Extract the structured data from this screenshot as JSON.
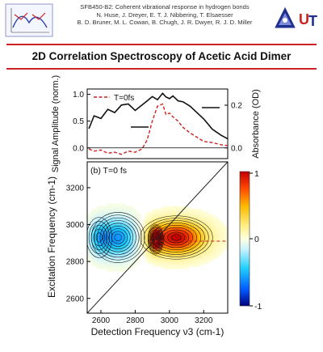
{
  "header": {
    "line1": "SFB450-B2: Coherent vibrational response in hydrogen bonds",
    "line2": "N. Huse, J. Dreyer, E. T. J. Nibbering, T. Elsaesser",
    "line3": "B. D. Bruner, M. L. Cowan, B. Chugh, J. R. Dwyer, R. J. D. Miller",
    "logo_right_text": "U",
    "logo_right_text2": "T"
  },
  "title": "2D Correlation Spectroscopy of Acetic Acid Dimer",
  "colors": {
    "rule": "#cc2222",
    "signal_line": "#cc2222",
    "absorbance_line": "#111111",
    "colorbar_max": "#c00000",
    "colorbar_zero": "#ffffe0",
    "colorbar_min": "#000080"
  },
  "chart_data": [
    {
      "type": "line",
      "panel": "top",
      "ylabel_left": "Signal Amplitude (norm.)",
      "ylabel_right": "Absorbance (OD)",
      "legend": "T=0fs",
      "left_ticks": [
        "0.0",
        "0.5",
        "1.0"
      ],
      "right_ticks": [
        "0.0",
        "0.2"
      ],
      "xlim": [
        2520,
        3340
      ],
      "ylim_left": [
        -0.2,
        1.1
      ],
      "x": [
        2530,
        2560,
        2600,
        2640,
        2680,
        2720,
        2760,
        2800,
        2840,
        2870,
        2900,
        2930,
        2960,
        2980,
        3000,
        3020,
        3050,
        3080,
        3120,
        3160,
        3200,
        3250,
        3300,
        3340
      ],
      "series": [
        {
          "name": "absorbance",
          "values": [
            0.36,
            0.6,
            0.55,
            0.72,
            0.66,
            0.8,
            0.82,
            0.7,
            0.8,
            0.88,
            0.96,
            0.9,
            1.02,
            0.95,
            0.92,
            0.97,
            0.88,
            0.86,
            0.78,
            0.66,
            0.54,
            0.35,
            0.24,
            0.17
          ]
        },
        {
          "name": "T=0fs",
          "values": [
            -0.02,
            -0.06,
            -0.04,
            -0.1,
            -0.08,
            -0.12,
            -0.06,
            -0.08,
            -0.02,
            0.15,
            0.5,
            0.78,
            0.82,
            0.62,
            0.65,
            0.58,
            0.5,
            0.38,
            0.28,
            0.2,
            0.12,
            0.1,
            0.06,
            0.04
          ]
        }
      ]
    },
    {
      "type": "heatmap",
      "panel": "bottom",
      "label": "(b) T=0 fs",
      "xlabel": "Detection Frequency ν3 (cm-1)",
      "ylabel": "Excitation Frequency (cm-1)",
      "xlim": [
        2520,
        3340
      ],
      "ylim": [
        2520,
        3340
      ],
      "x_ticks": [
        "2600",
        "2800",
        "3000",
        "3200"
      ],
      "y_ticks": [
        "2600",
        "2800",
        "3000",
        "3200"
      ],
      "colorbar_ticks": [
        "1",
        "0",
        "-1"
      ],
      "peaks": [
        {
          "x": 3040,
          "y": 2930,
          "amplitude": 1.0,
          "sx": 110,
          "sy": 60
        },
        {
          "x": 2920,
          "y": 2920,
          "amplitude": 1.0,
          "sx": 22,
          "sy": 40
        },
        {
          "x": 2700,
          "y": 2930,
          "amplitude": -0.6,
          "sx": 80,
          "sy": 70
        },
        {
          "x": 2590,
          "y": 2930,
          "amplitude": -0.35,
          "sx": 40,
          "sy": 60
        }
      ]
    }
  ]
}
